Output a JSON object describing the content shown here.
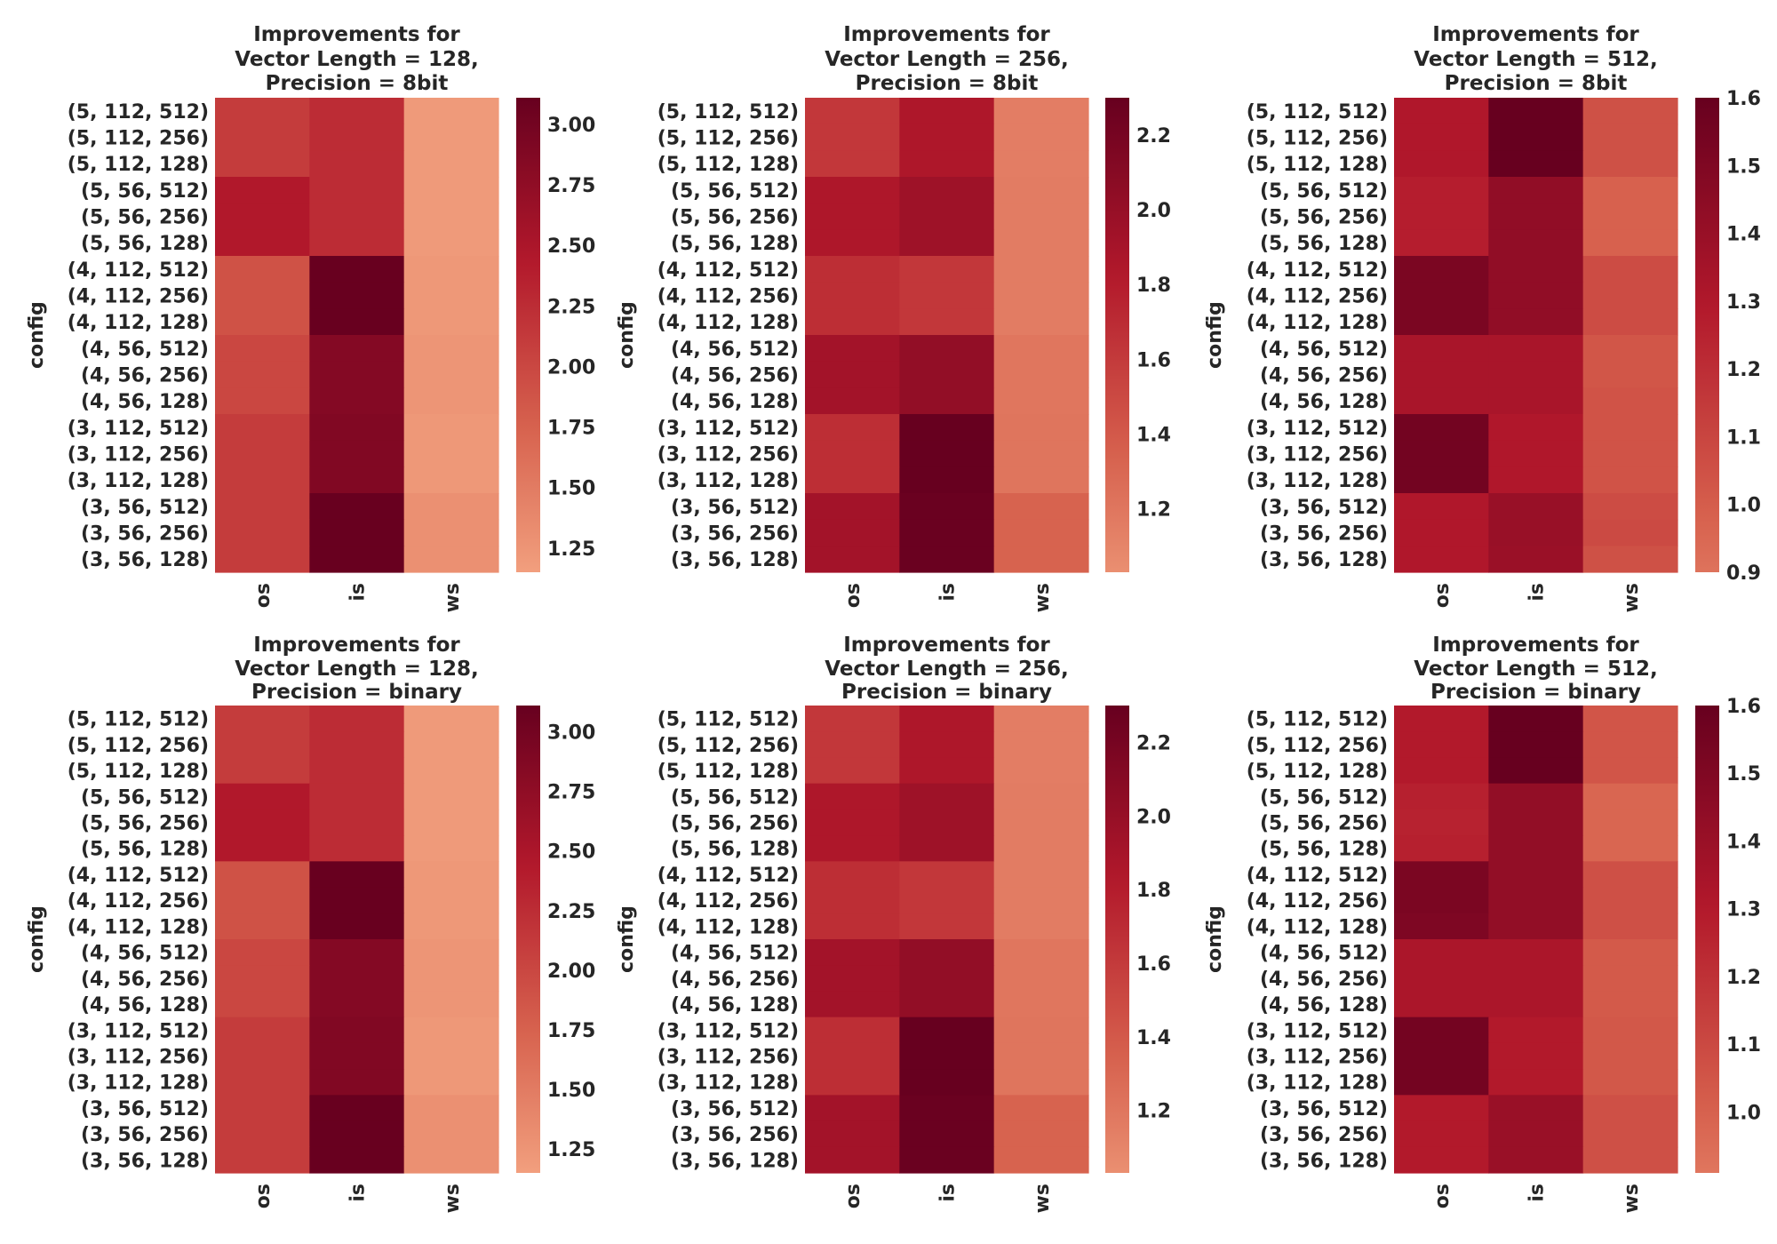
{
  "chart_data": [
    {
      "type": "heatmap",
      "title": [
        "Improvements for",
        "Vector Length = 128,",
        "Precision = 8bit"
      ],
      "ylabel": "config",
      "xlabel": "",
      "columns": [
        "os",
        "is",
        "ws"
      ],
      "rows": [
        "(5, 112, 512)",
        "(5, 112, 256)",
        "(5, 112, 128)",
        "(5, 56, 512)",
        "(5, 56, 256)",
        "(5, 56, 128)",
        "(4, 112, 512)",
        "(4, 112, 256)",
        "(4, 112, 128)",
        "(4, 56, 512)",
        "(4, 56, 256)",
        "(4, 56, 128)",
        "(3, 112, 512)",
        "(3, 112, 256)",
        "(3, 112, 128)",
        "(3, 56, 512)",
        "(3, 56, 256)",
        "(3, 56, 128)"
      ],
      "values": [
        [
          2.1,
          2.25,
          1.2
        ],
        [
          2.1,
          2.25,
          1.2
        ],
        [
          2.1,
          2.25,
          1.2
        ],
        [
          2.45,
          2.25,
          1.2
        ],
        [
          2.45,
          2.25,
          1.2
        ],
        [
          2.45,
          2.25,
          1.2
        ],
        [
          1.9,
          3.1,
          1.22
        ],
        [
          1.9,
          3.1,
          1.22
        ],
        [
          1.9,
          3.1,
          1.22
        ],
        [
          2.0,
          2.85,
          1.25
        ],
        [
          2.0,
          2.85,
          1.25
        ],
        [
          2.0,
          2.85,
          1.25
        ],
        [
          2.1,
          2.88,
          1.22
        ],
        [
          2.1,
          2.88,
          1.22
        ],
        [
          2.1,
          2.88,
          1.22
        ],
        [
          2.1,
          3.1,
          1.3
        ],
        [
          2.1,
          3.1,
          1.3
        ],
        [
          2.1,
          3.1,
          1.3
        ]
      ],
      "colorbar": {
        "vmin": 1.15,
        "vmax": 3.11,
        "ticks": [
          "1.25",
          "1.50",
          "1.75",
          "2.00",
          "2.25",
          "2.50",
          "2.75",
          "3.00"
        ],
        "cmap_start": 0.27
      }
    },
    {
      "type": "heatmap",
      "title": [
        "Improvements for",
        "Vector Length = 256,",
        "Precision = 8bit"
      ],
      "ylabel": "config",
      "xlabel": "",
      "columns": [
        "os",
        "is",
        "ws"
      ],
      "rows": [
        "(5, 112, 512)",
        "(5, 112, 256)",
        "(5, 112, 128)",
        "(5, 56, 512)",
        "(5, 56, 256)",
        "(5, 56, 128)",
        "(4, 112, 512)",
        "(4, 112, 256)",
        "(4, 112, 128)",
        "(4, 56, 512)",
        "(4, 56, 256)",
        "(4, 56, 128)",
        "(3, 112, 512)",
        "(3, 112, 256)",
        "(3, 112, 128)",
        "(3, 56, 512)",
        "(3, 56, 256)",
        "(3, 56, 128)"
      ],
      "values": [
        [
          1.62,
          1.85,
          1.15
        ],
        [
          1.62,
          1.85,
          1.15
        ],
        [
          1.62,
          1.85,
          1.15
        ],
        [
          1.85,
          1.95,
          1.16
        ],
        [
          1.85,
          1.95,
          1.16
        ],
        [
          1.85,
          1.95,
          1.16
        ],
        [
          1.68,
          1.62,
          1.16
        ],
        [
          1.68,
          1.62,
          1.16
        ],
        [
          1.68,
          1.62,
          1.16
        ],
        [
          1.92,
          2.03,
          1.2
        ],
        [
          1.92,
          2.03,
          1.2
        ],
        [
          1.92,
          2.03,
          1.2
        ],
        [
          1.68,
          2.3,
          1.21
        ],
        [
          1.68,
          2.3,
          1.21
        ],
        [
          1.68,
          2.3,
          1.21
        ],
        [
          1.92,
          2.28,
          1.33
        ],
        [
          1.92,
          2.28,
          1.33
        ],
        [
          1.92,
          2.28,
          1.33
        ]
      ],
      "colorbar": {
        "vmin": 1.03,
        "vmax": 2.3,
        "ticks": [
          "1.2",
          "1.4",
          "1.6",
          "1.8",
          "2.0",
          "2.2"
        ],
        "cmap_start": 0.33
      }
    },
    {
      "type": "heatmap",
      "title": [
        "Improvements for",
        "Vector Length = 512,",
        "Precision = 8bit"
      ],
      "ylabel": "config",
      "xlabel": "",
      "columns": [
        "os",
        "is",
        "ws"
      ],
      "rows": [
        "(5, 112, 512)",
        "(5, 112, 256)",
        "(5, 112, 128)",
        "(5, 56, 512)",
        "(5, 56, 256)",
        "(5, 56, 128)",
        "(4, 112, 512)",
        "(4, 112, 256)",
        "(4, 112, 128)",
        "(4, 56, 512)",
        "(4, 56, 256)",
        "(4, 56, 128)",
        "(3, 112, 512)",
        "(3, 112, 256)",
        "(3, 112, 128)",
        "(3, 56, 512)",
        "(3, 56, 256)",
        "(3, 56, 128)"
      ],
      "values": [
        [
          1.3,
          1.6,
          1.05
        ],
        [
          1.3,
          1.6,
          1.05
        ],
        [
          1.3,
          1.6,
          1.05
        ],
        [
          1.27,
          1.43,
          0.98
        ],
        [
          1.27,
          1.43,
          0.98
        ],
        [
          1.27,
          1.43,
          0.98
        ],
        [
          1.52,
          1.43,
          1.07
        ],
        [
          1.52,
          1.43,
          1.07
        ],
        [
          1.52,
          1.43,
          1.07
        ],
        [
          1.33,
          1.33,
          1.03
        ],
        [
          1.33,
          1.33,
          1.03
        ],
        [
          1.33,
          1.33,
          1.04
        ],
        [
          1.55,
          1.3,
          1.04
        ],
        [
          1.55,
          1.3,
          1.04
        ],
        [
          1.55,
          1.3,
          1.04
        ],
        [
          1.3,
          1.4,
          1.07
        ],
        [
          1.3,
          1.4,
          1.08
        ],
        [
          1.3,
          1.39,
          1.05
        ]
      ],
      "colorbar": {
        "vmin": 0.9,
        "vmax": 1.6,
        "ticks": [
          "0.9",
          "1.0",
          "1.1",
          "1.2",
          "1.3",
          "1.4",
          "1.5",
          "1.6"
        ],
        "cmap_start": 0.43
      }
    },
    {
      "type": "heatmap",
      "title": [
        "Improvements for",
        "Vector Length = 128,",
        "Precision = binary"
      ],
      "ylabel": "config",
      "xlabel": "",
      "columns": [
        "os",
        "is",
        "ws"
      ],
      "rows": [
        "(5, 112, 512)",
        "(5, 112, 256)",
        "(5, 112, 128)",
        "(5, 56, 512)",
        "(5, 56, 256)",
        "(5, 56, 128)",
        "(4, 112, 512)",
        "(4, 112, 256)",
        "(4, 112, 128)",
        "(4, 56, 512)",
        "(4, 56, 256)",
        "(4, 56, 128)",
        "(3, 112, 512)",
        "(3, 112, 256)",
        "(3, 112, 128)",
        "(3, 56, 512)",
        "(3, 56, 256)",
        "(3, 56, 128)"
      ],
      "values": [
        [
          2.1,
          2.25,
          1.2
        ],
        [
          2.1,
          2.25,
          1.2
        ],
        [
          2.1,
          2.25,
          1.2
        ],
        [
          2.45,
          2.25,
          1.2
        ],
        [
          2.45,
          2.25,
          1.2
        ],
        [
          2.45,
          2.25,
          1.2
        ],
        [
          1.9,
          3.1,
          1.22
        ],
        [
          1.9,
          3.1,
          1.22
        ],
        [
          1.9,
          3.1,
          1.22
        ],
        [
          2.0,
          2.85,
          1.25
        ],
        [
          2.0,
          2.85,
          1.25
        ],
        [
          2.0,
          2.85,
          1.25
        ],
        [
          2.1,
          2.88,
          1.22
        ],
        [
          2.1,
          2.88,
          1.22
        ],
        [
          2.1,
          2.88,
          1.22
        ],
        [
          2.1,
          3.1,
          1.3
        ],
        [
          2.1,
          3.1,
          1.3
        ],
        [
          2.1,
          3.1,
          1.3
        ]
      ],
      "colorbar": {
        "vmin": 1.15,
        "vmax": 3.11,
        "ticks": [
          "1.25",
          "1.50",
          "1.75",
          "2.00",
          "2.25",
          "2.50",
          "2.75",
          "3.00"
        ],
        "cmap_start": 0.27
      }
    },
    {
      "type": "heatmap",
      "title": [
        "Improvements for",
        "Vector Length = 256,",
        "Precision = binary"
      ],
      "ylabel": "config",
      "xlabel": "",
      "columns": [
        "os",
        "is",
        "ws"
      ],
      "rows": [
        "(5, 112, 512)",
        "(5, 112, 256)",
        "(5, 112, 128)",
        "(5, 56, 512)",
        "(5, 56, 256)",
        "(5, 56, 128)",
        "(4, 112, 512)",
        "(4, 112, 256)",
        "(4, 112, 128)",
        "(4, 56, 512)",
        "(4, 56, 256)",
        "(4, 56, 128)",
        "(3, 112, 512)",
        "(3, 112, 256)",
        "(3, 112, 128)",
        "(3, 56, 512)",
        "(3, 56, 256)",
        "(3, 56, 128)"
      ],
      "values": [
        [
          1.62,
          1.85,
          1.15
        ],
        [
          1.62,
          1.85,
          1.15
        ],
        [
          1.62,
          1.85,
          1.15
        ],
        [
          1.85,
          1.95,
          1.16
        ],
        [
          1.85,
          1.95,
          1.16
        ],
        [
          1.85,
          1.95,
          1.16
        ],
        [
          1.68,
          1.62,
          1.16
        ],
        [
          1.68,
          1.62,
          1.16
        ],
        [
          1.68,
          1.62,
          1.16
        ],
        [
          1.92,
          2.03,
          1.2
        ],
        [
          1.92,
          2.03,
          1.2
        ],
        [
          1.92,
          2.03,
          1.2
        ],
        [
          1.68,
          2.3,
          1.21
        ],
        [
          1.68,
          2.3,
          1.21
        ],
        [
          1.68,
          2.3,
          1.21
        ],
        [
          1.92,
          2.28,
          1.33
        ],
        [
          1.92,
          2.28,
          1.33
        ],
        [
          1.92,
          2.28,
          1.33
        ]
      ],
      "colorbar": {
        "vmin": 1.03,
        "vmax": 2.3,
        "ticks": [
          "1.2",
          "1.4",
          "1.6",
          "1.8",
          "2.0",
          "2.2"
        ],
        "cmap_start": 0.33
      }
    },
    {
      "type": "heatmap",
      "title": [
        "Improvements for",
        "Vector Length = 512,",
        "Precision = binary"
      ],
      "ylabel": "config",
      "xlabel": "",
      "columns": [
        "os",
        "is",
        "ws"
      ],
      "rows": [
        "(5, 112, 512)",
        "(5, 112, 256)",
        "(5, 112, 128)",
        "(5, 56, 512)",
        "(5, 56, 256)",
        "(5, 56, 128)",
        "(4, 112, 512)",
        "(4, 112, 256)",
        "(4, 112, 128)",
        "(4, 56, 512)",
        "(4, 56, 256)",
        "(4, 56, 128)",
        "(3, 112, 512)",
        "(3, 112, 256)",
        "(3, 112, 128)",
        "(3, 56, 512)",
        "(3, 56, 256)",
        "(3, 56, 128)"
      ],
      "values": [
        [
          1.3,
          1.6,
          1.05
        ],
        [
          1.3,
          1.6,
          1.05
        ],
        [
          1.3,
          1.6,
          1.05
        ],
        [
          1.27,
          1.43,
          0.98
        ],
        [
          1.26,
          1.43,
          0.98
        ],
        [
          1.27,
          1.43,
          0.98
        ],
        [
          1.52,
          1.43,
          1.07
        ],
        [
          1.52,
          1.43,
          1.07
        ],
        [
          1.51,
          1.43,
          1.07
        ],
        [
          1.33,
          1.33,
          1.03
        ],
        [
          1.33,
          1.33,
          1.03
        ],
        [
          1.33,
          1.33,
          1.03
        ],
        [
          1.55,
          1.3,
          1.04
        ],
        [
          1.55,
          1.3,
          1.04
        ],
        [
          1.55,
          1.3,
          1.04
        ],
        [
          1.3,
          1.4,
          1.07
        ],
        [
          1.3,
          1.4,
          1.07
        ],
        [
          1.3,
          1.4,
          1.07
        ]
      ],
      "colorbar": {
        "vmin": 0.91,
        "vmax": 1.6,
        "ticks": [
          "1.0",
          "1.1",
          "1.2",
          "1.3",
          "1.4",
          "1.5",
          "1.6"
        ],
        "cmap_start": 0.42
      }
    }
  ],
  "colormap": [
    "#fddbc7",
    "#f4a582",
    "#d6604d",
    "#b2182b",
    "#67001f"
  ],
  "text_color": "#262626"
}
